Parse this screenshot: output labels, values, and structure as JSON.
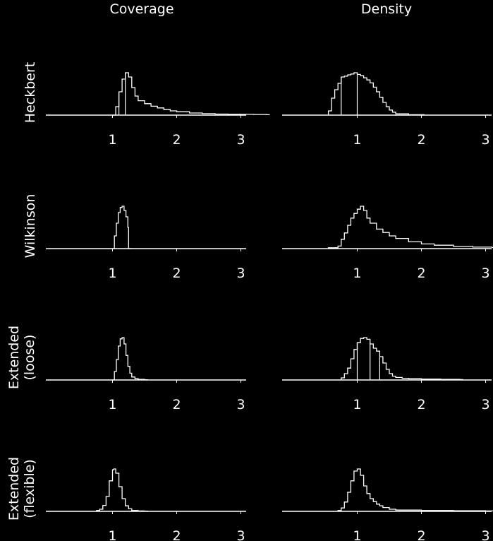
{
  "columns": [
    "Coverage",
    "Density"
  ],
  "rows": [
    {
      "label_lines": [
        "Heckbert"
      ]
    },
    {
      "label_lines": [
        "Wilkinson"
      ]
    },
    {
      "label_lines": [
        "Extended",
        "(loose)"
      ]
    },
    {
      "label_lines": [
        "Extended",
        "(flexible)"
      ]
    }
  ],
  "chart_data": [
    {
      "type": "area",
      "title": "",
      "row": "Heckbert",
      "column": "Coverage",
      "xlim": [
        0.5,
        3.6
      ],
      "xticks": [
        1,
        2,
        3
      ],
      "x": [
        1.0,
        1.05,
        1.1,
        1.15,
        1.2,
        1.25,
        1.3,
        1.35,
        1.4,
        1.5,
        1.6,
        1.7,
        1.8,
        1.9,
        2.0,
        2.2,
        2.4,
        2.6,
        2.8,
        3.0,
        3.2,
        3.4
      ],
      "y": [
        0,
        0.2,
        0.55,
        0.85,
        1.0,
        0.9,
        0.65,
        0.45,
        0.34,
        0.27,
        0.21,
        0.17,
        0.13,
        0.1,
        0.08,
        0.05,
        0.035,
        0.025,
        0.02,
        0.018,
        0.015,
        0.01
      ],
      "vlines": [
        1.1,
        1.2
      ]
    },
    {
      "type": "area",
      "title": "",
      "row": "Heckbert",
      "column": "Density",
      "xlim": [
        0.5,
        3.6
      ],
      "xticks": [
        1,
        2,
        3
      ],
      "x": [
        0.55,
        0.6,
        0.65,
        0.7,
        0.75,
        0.8,
        0.85,
        0.9,
        0.95,
        1.0,
        1.05,
        1.1,
        1.15,
        1.2,
        1.25,
        1.3,
        1.35,
        1.4,
        1.45,
        1.5,
        1.55,
        1.6,
        1.8,
        2.0
      ],
      "y": [
        0.1,
        0.4,
        0.6,
        0.75,
        0.9,
        0.92,
        0.95,
        0.97,
        1.0,
        0.96,
        0.93,
        0.88,
        0.83,
        0.76,
        0.66,
        0.55,
        0.42,
        0.3,
        0.2,
        0.12,
        0.07,
        0.03,
        0.01,
        0.01
      ],
      "vlines": [
        0.75,
        1.0
      ]
    },
    {
      "type": "area",
      "title": "",
      "row": "Wilkinson",
      "column": "Coverage",
      "xlim": [
        0.5,
        3.6
      ],
      "xticks": [
        1,
        2,
        3
      ],
      "x": [
        1.0,
        1.03,
        1.06,
        1.09,
        1.12,
        1.15,
        1.18,
        1.21,
        1.24,
        1.25
      ],
      "y": [
        0,
        0.3,
        0.6,
        0.85,
        0.97,
        1.0,
        0.9,
        0.75,
        0.5,
        0
      ],
      "vlines": [
        1.25
      ]
    },
    {
      "type": "area",
      "title": "",
      "row": "Wilkinson",
      "column": "Density",
      "xlim": [
        0.5,
        3.6
      ],
      "xticks": [
        1,
        2,
        3
      ],
      "x": [
        0.55,
        0.7,
        0.75,
        0.8,
        0.85,
        0.9,
        0.95,
        1.0,
        1.05,
        1.1,
        1.15,
        1.2,
        1.3,
        1.4,
        1.5,
        1.6,
        1.8,
        2.0,
        2.2,
        2.5,
        2.8,
        3.1,
        3.4,
        3.6
      ],
      "y": [
        0.02,
        0.06,
        0.22,
        0.37,
        0.55,
        0.72,
        0.83,
        0.93,
        1.0,
        0.9,
        0.72,
        0.6,
        0.46,
        0.38,
        0.3,
        0.24,
        0.16,
        0.11,
        0.08,
        0.05,
        0.035,
        0.025,
        0.02,
        0.015
      ],
      "vlines": []
    },
    {
      "type": "area",
      "title": "",
      "row": "Extended (loose)",
      "column": "Coverage",
      "xlim": [
        0.5,
        3.6
      ],
      "xticks": [
        1,
        2,
        3
      ],
      "x": [
        1.0,
        1.03,
        1.06,
        1.09,
        1.12,
        1.15,
        1.18,
        1.21,
        1.24,
        1.27,
        1.3,
        1.35,
        1.4,
        1.5
      ],
      "y": [
        0,
        0.2,
        0.48,
        0.8,
        0.97,
        1.0,
        0.85,
        0.58,
        0.32,
        0.16,
        0.07,
        0.03,
        0.015,
        0.005
      ],
      "vlines": []
    },
    {
      "type": "area",
      "title": "",
      "row": "Extended (loose)",
      "column": "Density",
      "xlim": [
        0.5,
        3.6
      ],
      "xticks": [
        1,
        2,
        3
      ],
      "x": [
        0.75,
        0.8,
        0.85,
        0.9,
        0.95,
        1.0,
        1.05,
        1.1,
        1.15,
        1.2,
        1.25,
        1.3,
        1.35,
        1.4,
        1.45,
        1.5,
        1.55,
        1.6,
        1.7,
        1.8,
        2.0,
        2.3,
        2.6
      ],
      "y": [
        0.05,
        0.15,
        0.28,
        0.5,
        0.72,
        0.88,
        0.98,
        1.0,
        0.96,
        0.85,
        0.75,
        0.68,
        0.55,
        0.4,
        0.25,
        0.15,
        0.09,
        0.06,
        0.04,
        0.03,
        0.02,
        0.015,
        0.01
      ],
      "vlines": [
        1.0,
        1.2,
        1.35
      ]
    },
    {
      "type": "area",
      "title": "",
      "row": "Extended (flexible)",
      "column": "Coverage",
      "xlim": [
        0.5,
        3.6
      ],
      "xticks": [
        1,
        2,
        3
      ],
      "x": [
        0.75,
        0.8,
        0.85,
        0.9,
        0.95,
        1.0,
        1.02,
        1.05,
        1.1,
        1.15,
        1.2,
        1.25,
        1.3,
        1.4,
        1.5
      ],
      "y": [
        0.02,
        0.05,
        0.14,
        0.35,
        0.72,
        0.98,
        1.0,
        0.9,
        0.58,
        0.3,
        0.13,
        0.06,
        0.02,
        0.01,
        0.005
      ],
      "vlines": []
    },
    {
      "type": "area",
      "title": "",
      "row": "Extended (flexible)",
      "column": "Density",
      "xlim": [
        0.5,
        3.6
      ],
      "xticks": [
        1,
        2,
        3
      ],
      "x": [
        0.7,
        0.75,
        0.8,
        0.85,
        0.9,
        0.95,
        1.0,
        1.05,
        1.1,
        1.15,
        1.2,
        1.25,
        1.3,
        1.35,
        1.4,
        1.5,
        1.6,
        2.0,
        2.5,
        3.0,
        3.6
      ],
      "y": [
        0.02,
        0.08,
        0.22,
        0.45,
        0.72,
        0.95,
        1.0,
        0.85,
        0.6,
        0.42,
        0.3,
        0.23,
        0.17,
        0.13,
        0.09,
        0.05,
        0.03,
        0.02,
        0.015,
        0.01,
        0.01
      ],
      "vlines": []
    }
  ]
}
